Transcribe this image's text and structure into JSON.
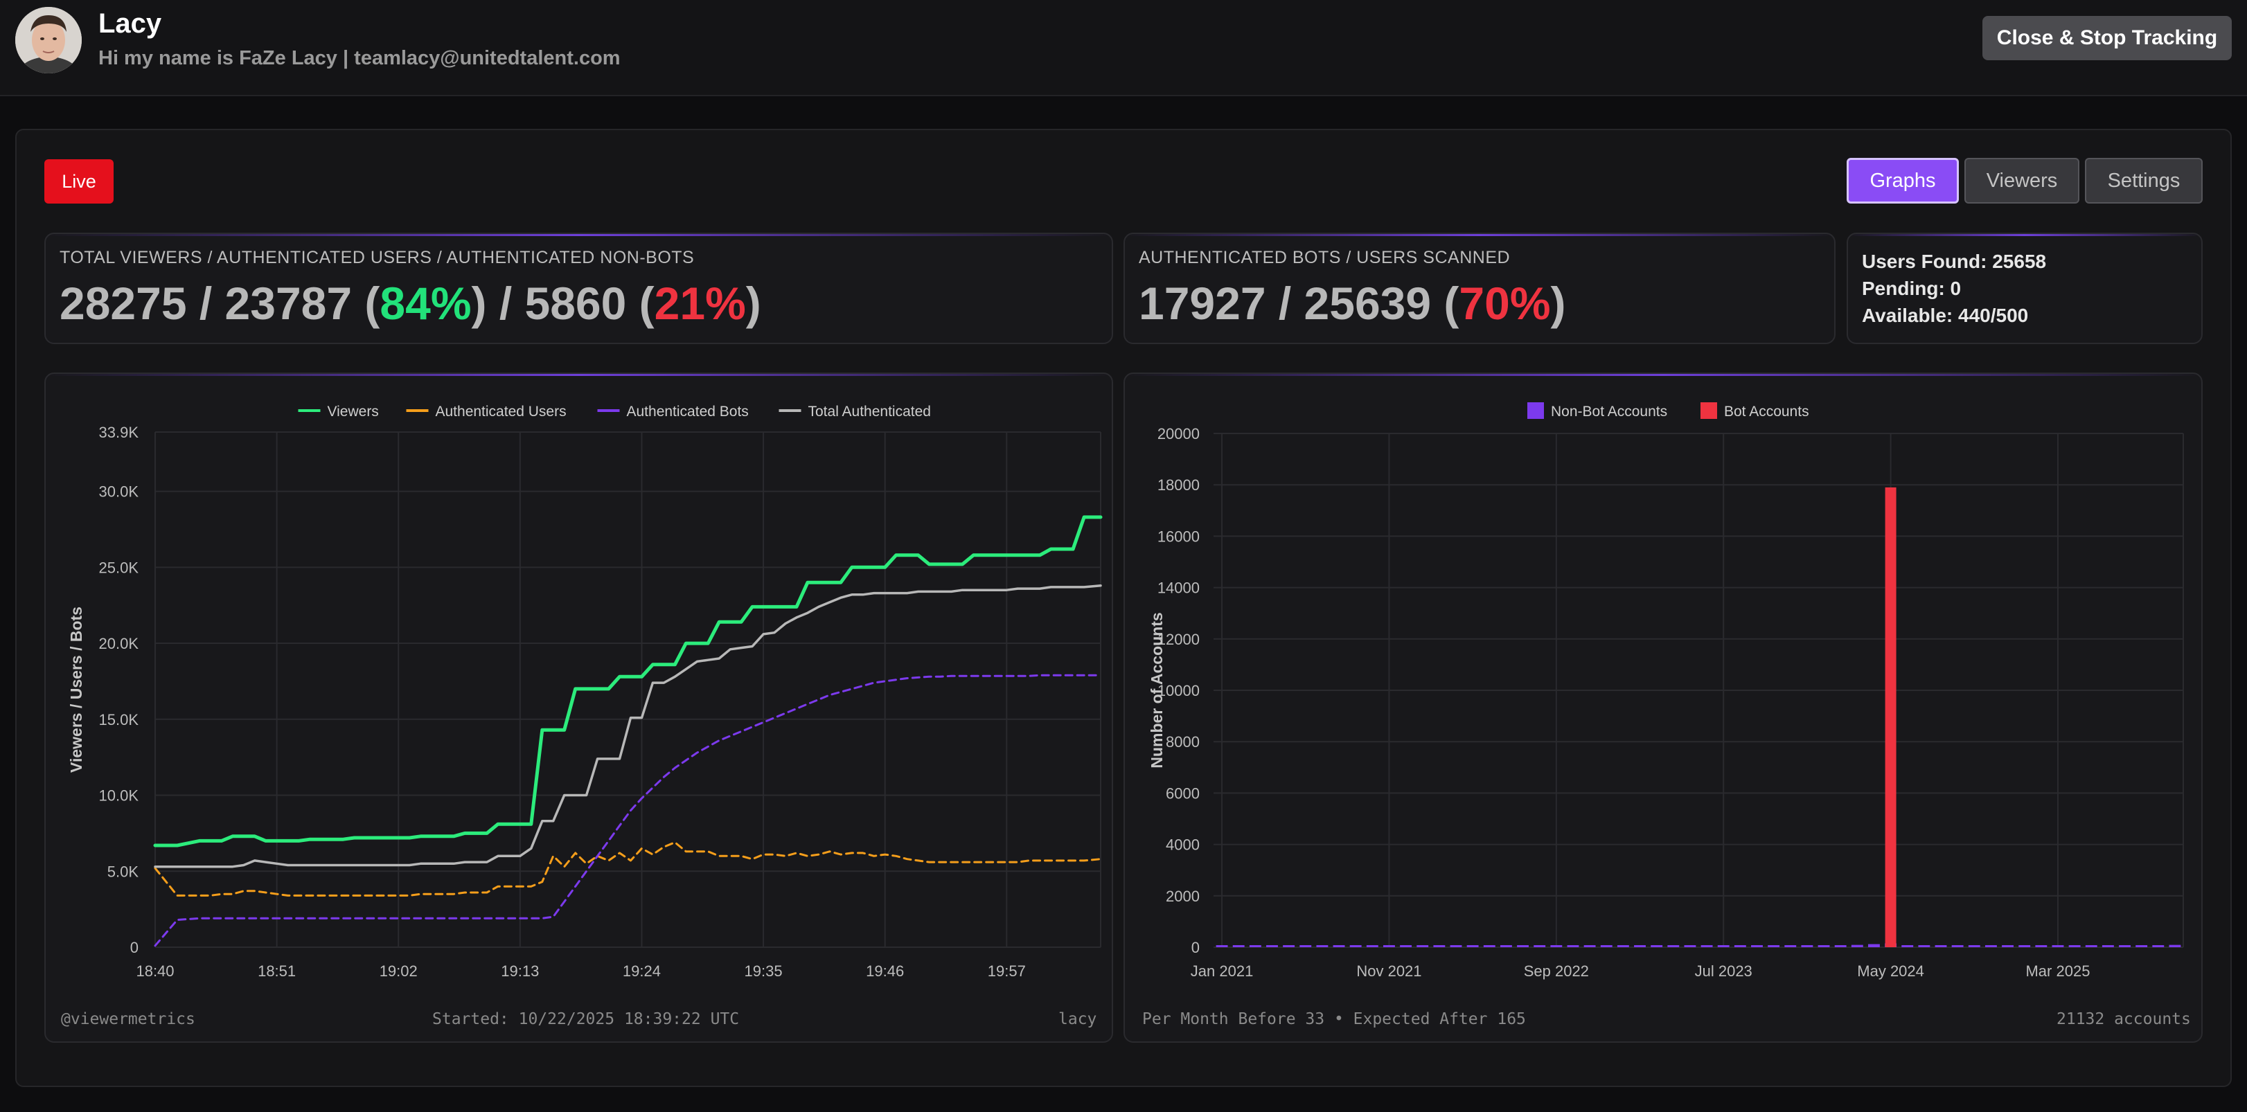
{
  "header": {
    "name": "Lacy",
    "bio": "Hi my name is FaZe Lacy | teamlacy@unitedtalent.com",
    "stop_button": "Close & Stop Tracking"
  },
  "status": {
    "live_label": "Live"
  },
  "tabs": [
    {
      "label": "Graphs",
      "active": true
    },
    {
      "label": "Viewers",
      "active": false
    },
    {
      "label": "Settings",
      "active": false
    }
  ],
  "stats": {
    "viewers_card": {
      "label": "TOTAL VIEWERS / AUTHENTICATED USERS / AUTHENTICATED NON-BOTS",
      "total_viewers": "28275",
      "authenticated_users": "23787",
      "authenticated_pct": "84%",
      "non_bots": "5860",
      "non_bots_pct": "21%"
    },
    "bots_card": {
      "label": "AUTHENTICATED BOTS / USERS SCANNED",
      "bots": "17927",
      "scanned": "25639",
      "bots_pct": "70%"
    },
    "scan_card": {
      "users_found": "Users Found: 25658",
      "pending": "Pending: 0",
      "available": "Available: 440/500"
    }
  },
  "colors": {
    "viewers": "#2cec7c",
    "authenticated_users": "#f59e1b",
    "authenticated_bots": "#7c3aed",
    "total_authenticated": "#b8b8b8",
    "non_bot_accounts": "#7c3aed",
    "bot_accounts": "#ef3340"
  },
  "chart_data": [
    {
      "type": "line",
      "ylabel": "Viewers / Users / Bots",
      "y_tick_labels": [
        "0",
        "5.0K",
        "10.0K",
        "15.0K",
        "20.0K",
        "25.0K",
        "30.0K",
        "33.9K"
      ],
      "y_tick_values": [
        0,
        5000,
        10000,
        15000,
        20000,
        25000,
        30000,
        33900
      ],
      "x_tick_labels": [
        "18:40",
        "18:51",
        "19:02",
        "19:13",
        "19:24",
        "19:35",
        "19:46",
        "19:57"
      ],
      "x_tick_values": [
        0,
        11,
        22,
        33,
        44,
        55,
        66,
        77
      ],
      "xlim": [
        0,
        85.5
      ],
      "ylim": [
        0,
        33900
      ],
      "grid": true,
      "legend_position": "top-center",
      "x": [
        0,
        2,
        4,
        5,
        6,
        7,
        8,
        9,
        10,
        11,
        12,
        13,
        14,
        15,
        16,
        17,
        18,
        19,
        20,
        21,
        22,
        23,
        24,
        25,
        26,
        27,
        28,
        29,
        30,
        31,
        32,
        33,
        34,
        35,
        36,
        37,
        38,
        39,
        40,
        41,
        42,
        43,
        44,
        45,
        46,
        47,
        48,
        49,
        50,
        51,
        52,
        53,
        54,
        55,
        56,
        57,
        58,
        59,
        60,
        61,
        62,
        63,
        64,
        65,
        66,
        67,
        68,
        69,
        70,
        71,
        72,
        73,
        74,
        75,
        76,
        77,
        78,
        79,
        80,
        81,
        82,
        83,
        84,
        85.5
      ],
      "series": [
        {
          "name": "Viewers",
          "values": [
            6700,
            6700,
            7000,
            7000,
            7000,
            7300,
            7300,
            7300,
            7000,
            7000,
            7000,
            7000,
            7100,
            7100,
            7100,
            7100,
            7200,
            7200,
            7200,
            7200,
            7200,
            7200,
            7300,
            7300,
            7300,
            7300,
            7500,
            7500,
            7500,
            8100,
            8100,
            8100,
            8100,
            14300,
            14300,
            14300,
            17000,
            17000,
            17000,
            17000,
            17800,
            17800,
            17800,
            18600,
            18600,
            18600,
            20000,
            20000,
            20000,
            21400,
            21400,
            21400,
            22400,
            22400,
            22400,
            22400,
            22400,
            24000,
            24000,
            24000,
            24000,
            25000,
            25000,
            25000,
            25000,
            25800,
            25800,
            25800,
            25200,
            25200,
            25200,
            25200,
            25800,
            25800,
            25800,
            25800,
            25800,
            25800,
            25800,
            26200,
            26200,
            26200,
            28300,
            28300
          ]
        },
        {
          "name": "Authenticated Users",
          "values": [
            5200,
            3400,
            3400,
            3400,
            3500,
            3500,
            3700,
            3700,
            3600,
            3500,
            3400,
            3400,
            3400,
            3400,
            3400,
            3400,
            3400,
            3400,
            3400,
            3400,
            3400,
            3400,
            3500,
            3500,
            3500,
            3500,
            3600,
            3600,
            3600,
            4000,
            4000,
            4000,
            4000,
            4300,
            6000,
            5300,
            6200,
            5500,
            6000,
            5700,
            6200,
            5700,
            6500,
            6100,
            6600,
            6900,
            6300,
            6300,
            6300,
            6000,
            6000,
            6000,
            5800,
            6100,
            6100,
            6000,
            6200,
            6000,
            6100,
            6300,
            6100,
            6200,
            6200,
            6000,
            6100,
            6000,
            5800,
            5700,
            5600,
            5600,
            5600,
            5600,
            5600,
            5600,
            5600,
            5600,
            5600,
            5700,
            5700,
            5700,
            5700,
            5700,
            5700,
            5800
          ]
        },
        {
          "name": "Authenticated Bots",
          "values": [
            100,
            1800,
            1900,
            1900,
            1900,
            1900,
            1900,
            1900,
            1900,
            1900,
            1900,
            1900,
            1900,
            1900,
            1900,
            1900,
            1900,
            1900,
            1900,
            1900,
            1900,
            1900,
            1900,
            1900,
            1900,
            1900,
            1900,
            1900,
            1900,
            1900,
            1900,
            1900,
            1900,
            1900,
            2000,
            3000,
            4000,
            5000,
            6000,
            7000,
            8000,
            9000,
            9800,
            10500,
            11200,
            11800,
            12300,
            12800,
            13200,
            13600,
            13900,
            14200,
            14500,
            14800,
            15100,
            15400,
            15700,
            16000,
            16300,
            16600,
            16800,
            17000,
            17200,
            17400,
            17500,
            17600,
            17700,
            17750,
            17800,
            17800,
            17850,
            17850,
            17850,
            17850,
            17850,
            17850,
            17850,
            17850,
            17900,
            17900,
            17900,
            17900,
            17900,
            17900
          ]
        },
        {
          "name": "Total Authenticated",
          "values": [
            5300,
            5300,
            5300,
            5300,
            5300,
            5300,
            5400,
            5700,
            5600,
            5500,
            5400,
            5400,
            5400,
            5400,
            5400,
            5400,
            5400,
            5400,
            5400,
            5400,
            5400,
            5400,
            5500,
            5500,
            5500,
            5500,
            5600,
            5600,
            5600,
            6000,
            6000,
            6000,
            6500,
            8300,
            8300,
            10000,
            10000,
            10000,
            12400,
            12400,
            12400,
            15100,
            15100,
            17400,
            17400,
            17800,
            18300,
            18800,
            18900,
            19000,
            19600,
            19700,
            19800,
            20600,
            20700,
            21300,
            21700,
            22000,
            22400,
            22700,
            23000,
            23200,
            23200,
            23300,
            23300,
            23300,
            23300,
            23400,
            23400,
            23400,
            23400,
            23500,
            23500,
            23500,
            23500,
            23500,
            23600,
            23600,
            23600,
            23700,
            23700,
            23700,
            23700,
            23800
          ]
        }
      ]
    },
    {
      "type": "bar",
      "ylabel": "Number of Accounts",
      "y_tick_labels": [
        "0",
        "2000",
        "4000",
        "6000",
        "8000",
        "10000",
        "12000",
        "14000",
        "16000",
        "18000",
        "20000"
      ],
      "ylim": [
        0,
        20000
      ],
      "x_tick_labels": [
        "Jan 2021",
        "Nov 2021",
        "Sep 2022",
        "Jul 2023",
        "May 2024",
        "Mar 2025"
      ],
      "x_tick_indices": [
        0,
        10,
        20,
        30,
        40,
        50
      ],
      "grid": true,
      "legend_position": "top-center",
      "categories": [
        "Jan 2021",
        "Feb 2021",
        "Mar 2021",
        "Apr 2021",
        "May 2021",
        "Jun 2021",
        "Jul 2021",
        "Aug 2021",
        "Sep 2021",
        "Oct 2021",
        "Nov 2021",
        "Dec 2021",
        "Jan 2022",
        "Feb 2022",
        "Mar 2022",
        "Apr 2022",
        "May 2022",
        "Jun 2022",
        "Jul 2022",
        "Aug 2022",
        "Sep 2022",
        "Oct 2022",
        "Nov 2022",
        "Dec 2022",
        "Jan 2023",
        "Feb 2023",
        "Mar 2023",
        "Apr 2023",
        "May 2023",
        "Jun 2023",
        "Jul 2023",
        "Aug 2023",
        "Sep 2023",
        "Oct 2023",
        "Nov 2023",
        "Dec 2023",
        "Jan 2024",
        "Feb 2024",
        "Mar 2024",
        "Apr 2024",
        "May 2024",
        "Jun 2024",
        "Jul 2024",
        "Aug 2024",
        "Sep 2024",
        "Oct 2024",
        "Nov 2024",
        "Dec 2024",
        "Jan 2025",
        "Feb 2025",
        "Mar 2025",
        "Apr 2025",
        "May 2025",
        "Jun 2025",
        "Jul 2025",
        "Aug 2025",
        "Sep 2025",
        "Oct 2025"
      ],
      "series": [
        {
          "name": "Non-Bot Accounts",
          "values": [
            60,
            40,
            35,
            30,
            25,
            30,
            25,
            30,
            40,
            35,
            30,
            40,
            25,
            20,
            25,
            30,
            35,
            25,
            30,
            25,
            35,
            30,
            25,
            20,
            30,
            35,
            25,
            30,
            20,
            25,
            30,
            25,
            35,
            30,
            40,
            45,
            50,
            70,
            90,
            120,
            150,
            80,
            60,
            50,
            45,
            40,
            35,
            30,
            25,
            35,
            30,
            30,
            40,
            50,
            45,
            60,
            70,
            90
          ]
        },
        {
          "name": "Bot Accounts",
          "values": [
            0,
            0,
            0,
            0,
            0,
            0,
            0,
            0,
            0,
            0,
            0,
            0,
            0,
            0,
            0,
            0,
            0,
            0,
            0,
            0,
            0,
            0,
            0,
            0,
            0,
            0,
            0,
            0,
            0,
            0,
            0,
            0,
            0,
            0,
            0,
            0,
            0,
            0,
            0,
            0,
            17900,
            0,
            0,
            0,
            0,
            0,
            0,
            0,
            0,
            0,
            0,
            0,
            0,
            0,
            0,
            0,
            0,
            0
          ]
        }
      ]
    }
  ],
  "chart_footers": {
    "left_handle": "@viewermetrics",
    "started": "Started: 10/22/2025 18:39:22 UTC",
    "channel": "lacy",
    "per_month": "Per Month Before 33 • Expected After 165",
    "accounts": "21132 accounts"
  }
}
